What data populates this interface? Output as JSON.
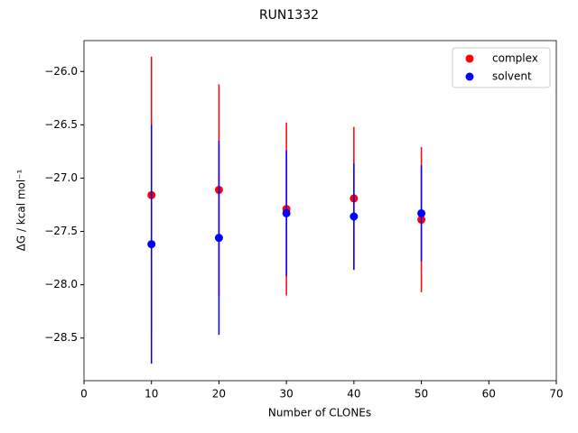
{
  "chart_data": {
    "type": "errorbar",
    "title": "RUN1332",
    "xlabel": "Number of CLONEs",
    "ylabel": "ΔG / kcal mol⁻¹",
    "x": [
      10,
      20,
      30,
      40,
      50
    ],
    "series": [
      {
        "name": "complex",
        "color": "#ff0000",
        "values": [
          -27.16,
          -27.11,
          -27.29,
          -27.19,
          -27.39
        ],
        "errors": [
          1.3,
          0.99,
          0.81,
          0.67,
          0.68
        ]
      },
      {
        "name": "solvent",
        "color": "#0000ff",
        "values": [
          -27.62,
          -27.56,
          -27.33,
          -27.36,
          -27.33
        ],
        "errors": [
          1.12,
          0.91,
          0.59,
          0.5,
          0.45
        ]
      }
    ],
    "xlim": [
      0,
      70
    ],
    "xticks": [
      0,
      10,
      20,
      30,
      40,
      50,
      60,
      70
    ],
    "ylim": [
      -28.9,
      -25.71
    ],
    "yticks": [
      {
        "value": -28.5,
        "label": "−28.5"
      },
      {
        "value": -28.0,
        "label": "−28.0"
      },
      {
        "value": -27.5,
        "label": "−27.5"
      },
      {
        "value": -27.0,
        "label": "−27.0"
      },
      {
        "value": -26.5,
        "label": "−26.5"
      },
      {
        "value": -26.0,
        "label": "−26.0"
      }
    ],
    "legend": "upper right"
  }
}
